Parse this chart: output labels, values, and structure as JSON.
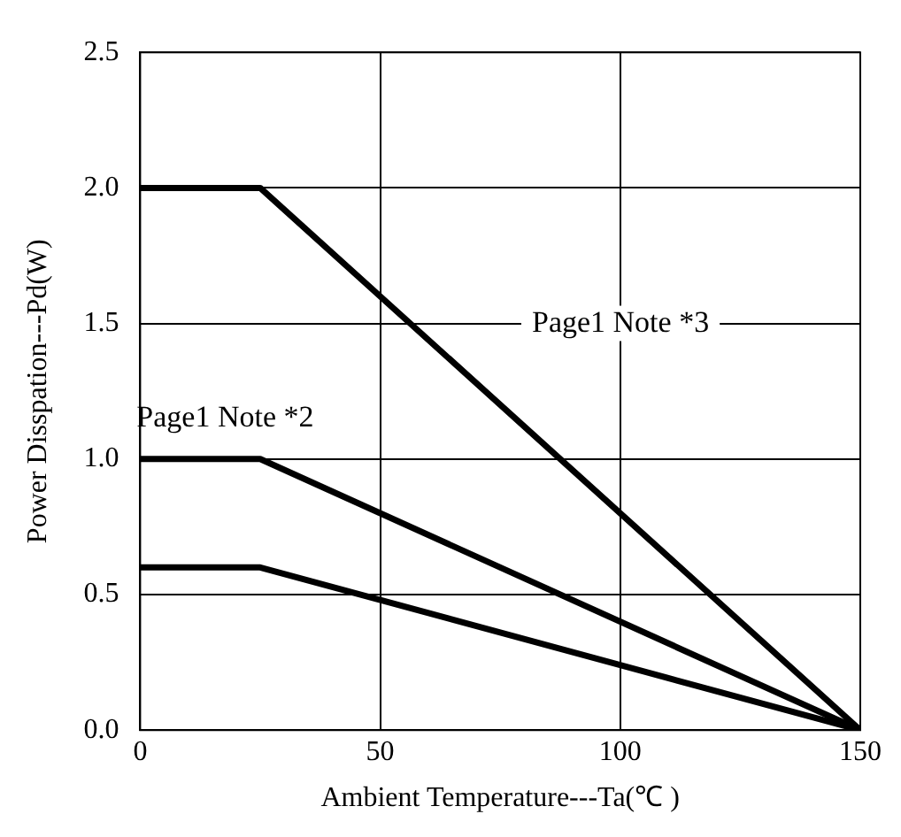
{
  "chart_data": {
    "type": "line",
    "xlabel": "Ambient Temperature---Ta(℃ )",
    "ylabel": "Power Disspation---Pd(W)",
    "xlim": [
      0,
      150
    ],
    "xticks": [
      0,
      50,
      100,
      150
    ],
    "ylim": [
      0,
      2.5
    ],
    "yticks": [
      {
        "value": 0,
        "label": "0.0"
      },
      {
        "value": 0.5,
        "label": "0.5"
      },
      {
        "value": 1,
        "label": "1.0"
      },
      {
        "value": 1.5,
        "label": "1.5"
      },
      {
        "value": 2,
        "label": "2.0"
      },
      {
        "value": 2.5,
        "label": "2.5"
      }
    ],
    "grid": true,
    "legend": false,
    "marker": "none",
    "line_style": "solid",
    "x": [
      0,
      25,
      150
    ],
    "series": [
      {
        "color": "#000000",
        "values": [
          2,
          2,
          0
        ]
      },
      {
        "color": "#000000",
        "values": [
          1,
          1,
          0
        ]
      },
      {
        "color": "#000000",
        "values": [
          0.6,
          0.6,
          0
        ]
      }
    ],
    "annotations": [
      "Page1 Note *3",
      "Page1 Note *2"
    ]
  }
}
